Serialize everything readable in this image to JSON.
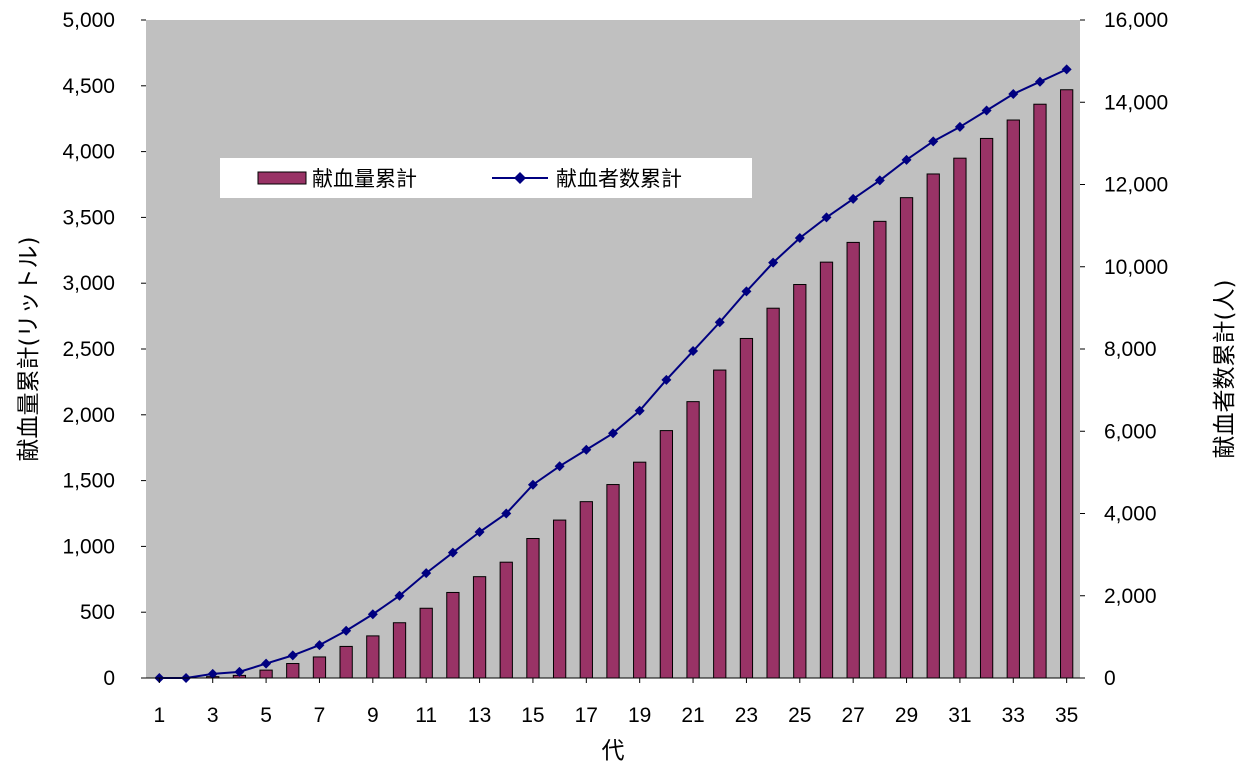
{
  "chart_data": {
    "type": "bar",
    "x_title": "代",
    "y_left_title": "献血量累計(リットル)",
    "y_right_title": "献血者数累計(人)",
    "x_tick_labels": [
      "1",
      "3",
      "5",
      "7",
      "9",
      "11",
      "13",
      "15",
      "17",
      "19",
      "21",
      "23",
      "25",
      "27",
      "29",
      "31",
      "33",
      "35"
    ],
    "left_ticks": [
      "0",
      "500",
      "1,000",
      "1,500",
      "2,000",
      "2,500",
      "3,000",
      "3,500",
      "4,000",
      "4,500",
      "5,000"
    ],
    "right_ticks": [
      "0",
      "2,000",
      "4,000",
      "6,000",
      "8,000",
      "10,000",
      "12,000",
      "14,000",
      "16,000"
    ],
    "ylim_left": [
      0,
      5000
    ],
    "ylim_right": [
      0,
      16000
    ],
    "grid": false,
    "legend_position": "upper-left",
    "categories": [
      1,
      2,
      3,
      4,
      5,
      6,
      7,
      8,
      9,
      10,
      11,
      12,
      13,
      14,
      15,
      16,
      17,
      18,
      19,
      20,
      21,
      22,
      23,
      24,
      25,
      26,
      27,
      28,
      29,
      30,
      31,
      32,
      33,
      34,
      35
    ],
    "series": [
      {
        "name": "献血量累計",
        "type": "bar",
        "axis": "left",
        "color": "#993366",
        "values": [
          0,
          0,
          10,
          20,
          60,
          110,
          160,
          240,
          320,
          420,
          530,
          650,
          770,
          880,
          1060,
          1200,
          1340,
          1470,
          1640,
          1880,
          2100,
          2340,
          2580,
          2810,
          2990,
          3160,
          3310,
          3470,
          3650,
          3830,
          3950,
          4100,
          4240,
          4360,
          4470
        ]
      },
      {
        "name": "献血者数累計",
        "type": "line",
        "axis": "right",
        "color": "#000080",
        "values": [
          0,
          0,
          100,
          150,
          350,
          550,
          800,
          1150,
          1550,
          2000,
          2550,
          3050,
          3550,
          4000,
          4700,
          5150,
          5550,
          5950,
          6500,
          7250,
          7950,
          8650,
          9400,
          10100,
          10700,
          11200,
          11650,
          12100,
          12600,
          13050,
          13400,
          13800,
          14200,
          14500,
          14800
        ]
      }
    ]
  },
  "colors": {
    "plot_background": "#c0c0c0",
    "bar_fill": "#993366",
    "line": "#000080"
  }
}
